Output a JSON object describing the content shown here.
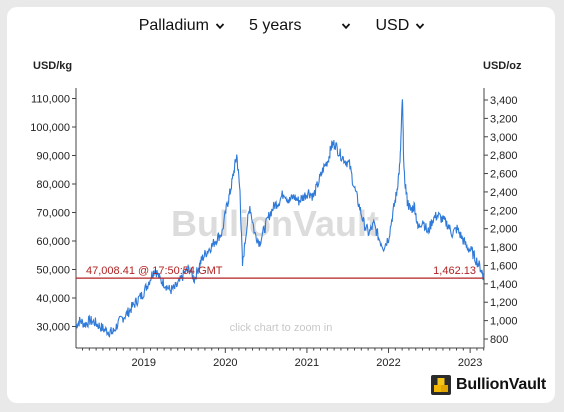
{
  "selectors": {
    "metal": "Palladium",
    "period": "5 years",
    "currency": "USD"
  },
  "units": {
    "left": "USD/kg",
    "right": "USD/oz"
  },
  "watermark": "BullionVault",
  "hint": "click chart to zoom in",
  "brand": "BullionVault",
  "current": {
    "left_value": "47,008.41",
    "time": "@ 17:50:54 GMT",
    "right_value": "1,462.13",
    "price_usd_oz": 1462.13
  },
  "colors": {
    "line": "#2f7ad8",
    "current": "#b22222",
    "axis": "#444444"
  },
  "chart_data": {
    "type": "line",
    "x_axis": {
      "min": 2018.17,
      "max": 2023.17,
      "ticks": [
        "2019",
        "2020",
        "2021",
        "2022",
        "2023"
      ]
    },
    "y_left": {
      "label": "USD/kg",
      "ticks": [
        "30,000",
        "40,000",
        "50,000",
        "60,000",
        "70,000",
        "80,000",
        "90,000",
        "100,000",
        "110,000"
      ],
      "values": [
        30000,
        40000,
        50000,
        60000,
        70000,
        80000,
        90000,
        100000,
        110000
      ]
    },
    "y_right": {
      "label": "USD/oz",
      "ticks": [
        "800",
        "1,000",
        "1,200",
        "1,400",
        "1,600",
        "1,800",
        "2,000",
        "2,200",
        "2,400",
        "2,600",
        "2,800",
        "3,000",
        "3,200",
        "3,400"
      ],
      "values": [
        800,
        1000,
        1200,
        1400,
        1600,
        1800,
        2000,
        2200,
        2400,
        2600,
        2800,
        3000,
        3200,
        3400
      ]
    },
    "series": [
      {
        "unit": "USD/oz",
        "points": [
          [
            2018.17,
            950
          ],
          [
            2018.22,
            1000
          ],
          [
            2018.28,
            960
          ],
          [
            2018.34,
            1000
          ],
          [
            2018.4,
            980
          ],
          [
            2018.46,
            940
          ],
          [
            2018.52,
            900
          ],
          [
            2018.58,
            880
          ],
          [
            2018.62,
            870
          ],
          [
            2018.68,
            960
          ],
          [
            2018.74,
            1030
          ],
          [
            2018.8,
            1080
          ],
          [
            2018.86,
            1150
          ],
          [
            2018.92,
            1220
          ],
          [
            2018.98,
            1280
          ],
          [
            2019.04,
            1380
          ],
          [
            2019.1,
            1500
          ],
          [
            2019.14,
            1560
          ],
          [
            2019.2,
            1450
          ],
          [
            2019.26,
            1400
          ],
          [
            2019.32,
            1330
          ],
          [
            2019.38,
            1350
          ],
          [
            2019.44,
            1420
          ],
          [
            2019.5,
            1520
          ],
          [
            2019.56,
            1560
          ],
          [
            2019.62,
            1450
          ],
          [
            2019.68,
            1600
          ],
          [
            2019.72,
            1680
          ],
          [
            2019.78,
            1760
          ],
          [
            2019.84,
            1820
          ],
          [
            2019.9,
            1900
          ],
          [
            2019.96,
            1960
          ],
          [
            2020.02,
            2250
          ],
          [
            2020.06,
            2400
          ],
          [
            2020.1,
            2600
          ],
          [
            2020.14,
            2800
          ],
          [
            2020.18,
            2400
          ],
          [
            2020.21,
            1600
          ],
          [
            2020.26,
            2000
          ],
          [
            2020.3,
            2250
          ],
          [
            2020.36,
            1950
          ],
          [
            2020.42,
            1850
          ],
          [
            2020.48,
            2000
          ],
          [
            2020.54,
            2150
          ],
          [
            2020.6,
            2250
          ],
          [
            2020.66,
            2300
          ],
          [
            2020.72,
            2400
          ],
          [
            2020.78,
            2300
          ],
          [
            2020.84,
            2350
          ],
          [
            2020.9,
            2300
          ],
          [
            2020.96,
            2350
          ],
          [
            2021.02,
            2400
          ],
          [
            2021.08,
            2350
          ],
          [
            2021.14,
            2500
          ],
          [
            2021.2,
            2650
          ],
          [
            2021.26,
            2750
          ],
          [
            2021.3,
            2900
          ],
          [
            2021.34,
            2930
          ],
          [
            2021.4,
            2820
          ],
          [
            2021.46,
            2750
          ],
          [
            2021.52,
            2700
          ],
          [
            2021.58,
            2450
          ],
          [
            2021.64,
            2250
          ],
          [
            2021.7,
            2050
          ],
          [
            2021.76,
            1950
          ],
          [
            2021.82,
            2050
          ],
          [
            2021.88,
            1900
          ],
          [
            2021.94,
            1800
          ],
          [
            2022.0,
            1900
          ],
          [
            2022.06,
            2200
          ],
          [
            2022.1,
            2400
          ],
          [
            2022.14,
            2700
          ],
          [
            2022.17,
            3420
          ],
          [
            2022.19,
            2600
          ],
          [
            2022.23,
            2300
          ],
          [
            2022.27,
            2200
          ],
          [
            2022.32,
            2250
          ],
          [
            2022.36,
            2000
          ],
          [
            2022.42,
            2100
          ],
          [
            2022.48,
            1950
          ],
          [
            2022.54,
            2100
          ],
          [
            2022.6,
            2150
          ],
          [
            2022.66,
            2100
          ],
          [
            2022.72,
            2050
          ],
          [
            2022.78,
            1950
          ],
          [
            2022.84,
            2000
          ],
          [
            2022.9,
            1900
          ],
          [
            2022.96,
            1800
          ],
          [
            2023.02,
            1750
          ],
          [
            2023.08,
            1650
          ],
          [
            2023.14,
            1550
          ],
          [
            2023.17,
            1462
          ]
        ]
      }
    ]
  }
}
